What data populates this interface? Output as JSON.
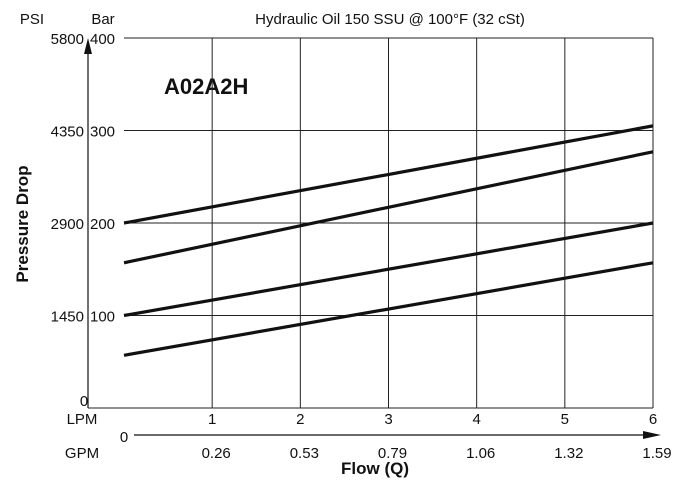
{
  "chart_data": {
    "type": "line",
    "title": "Hydraulic Oil 150 SSU @ 100°F (32 cSt)",
    "model_label": "A02A2H",
    "ylabel": "Pressure Drop",
    "xlabel": "Flow (Q)",
    "y_unit_left": "PSI",
    "y_unit_right": "Bar",
    "x_unit_top": "LPM",
    "x_unit_bottom": "GPM",
    "xlim": [
      0,
      6
    ],
    "ylim": [
      0,
      400
    ],
    "grid": true,
    "y_ticks_bar": [
      "0",
      "100",
      "200",
      "300",
      "400"
    ],
    "y_ticks_bar_values": [
      0,
      100,
      200,
      300,
      400
    ],
    "y_ticks_psi": [
      "0",
      "1450",
      "2900",
      "4350",
      "5800"
    ],
    "x_ticks_lpm": [
      "1",
      "2",
      "3",
      "4",
      "5",
      "6"
    ],
    "x_ticks_lpm_values": [
      1,
      2,
      3,
      4,
      5,
      6
    ],
    "x_origin_label": "0",
    "x_ticks_gpm": [
      "0.26",
      "0.53",
      "0.79",
      "1.06",
      "1.32",
      "1.59"
    ],
    "series": [
      {
        "x": [
          0,
          6
        ],
        "y": [
          200,
          305
        ]
      },
      {
        "x": [
          0,
          6
        ],
        "y": [
          157,
          277
        ]
      },
      {
        "x": [
          0,
          6
        ],
        "y": [
          100,
          200
        ]
      },
      {
        "x": [
          0,
          6
        ],
        "y": [
          57,
          157
        ]
      }
    ]
  }
}
